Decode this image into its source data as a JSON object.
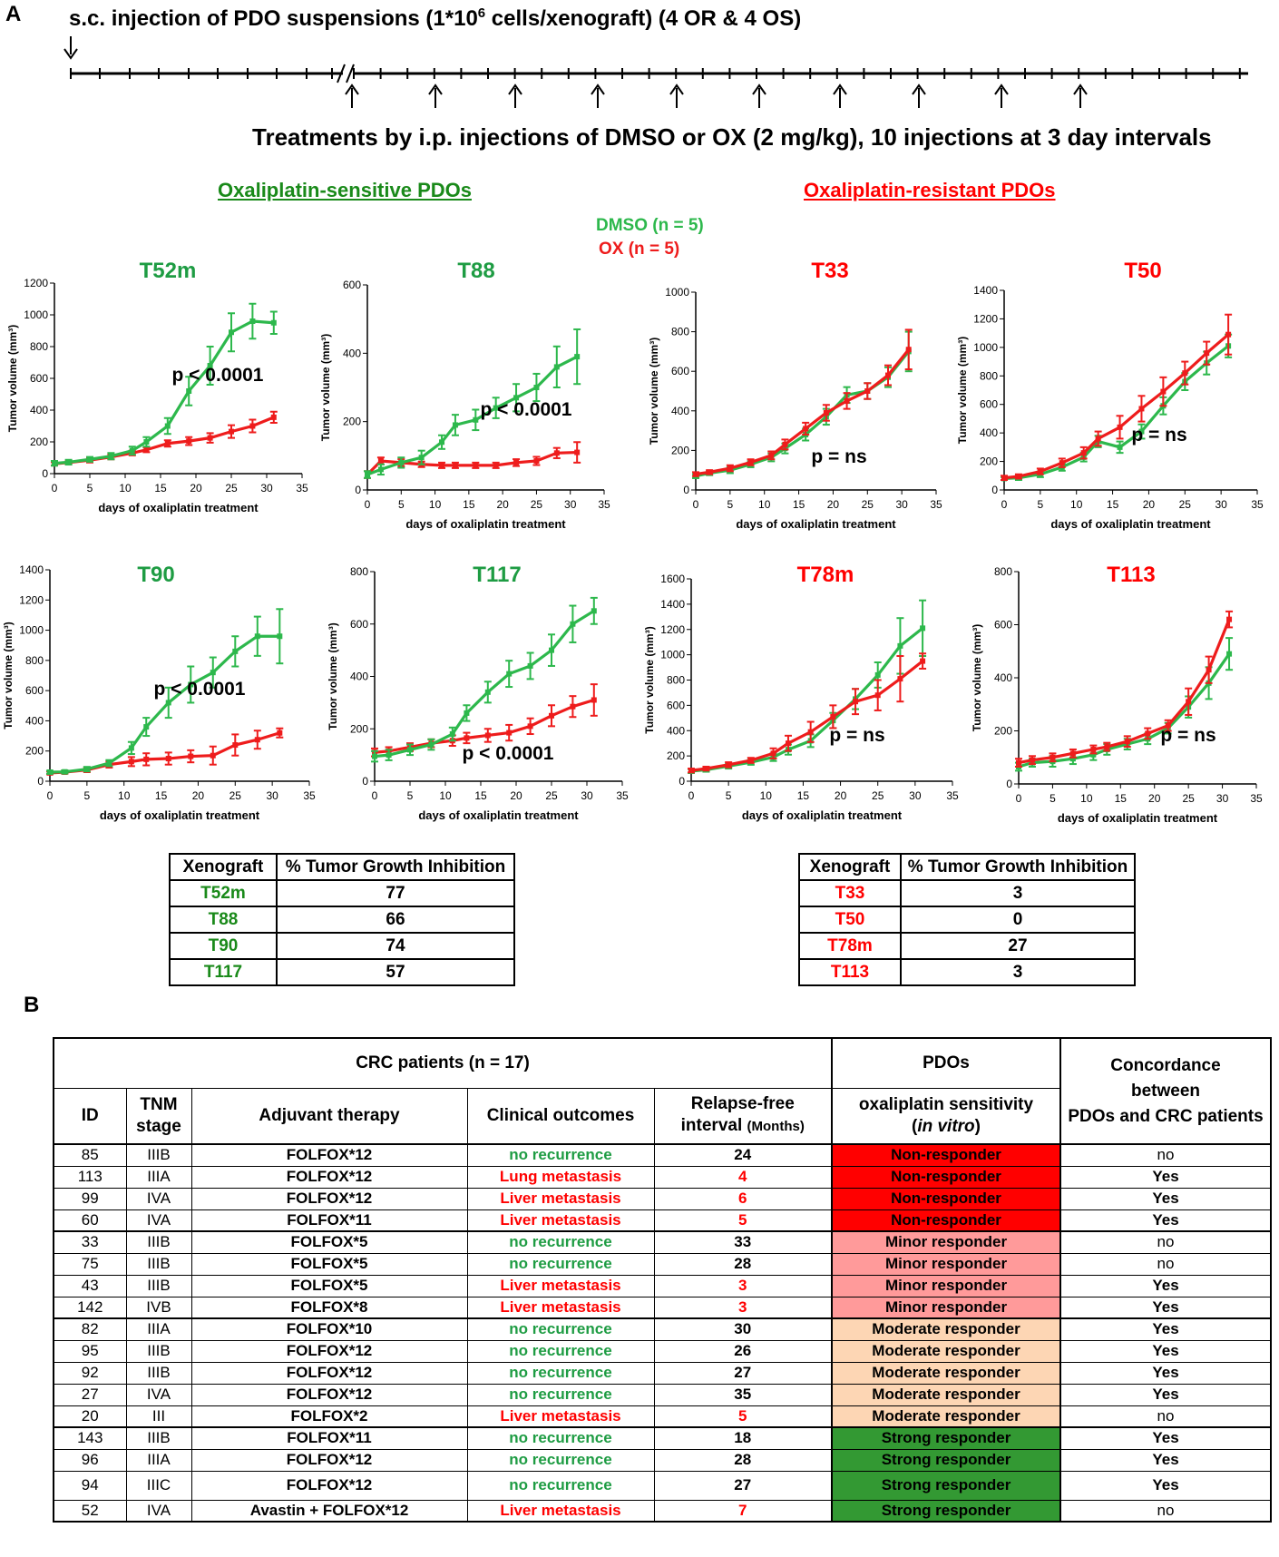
{
  "panelA": {
    "label": "A",
    "injection_text_pre": "s.c. injection of PDO suspensions (1*10",
    "injection_text_sup": "6",
    "injection_text_post": " cells/xenograft)  (4 OR & 4 OS)",
    "treatment_text": "Treatments by i.p. injections of DMSO or OX (2 mg/kg), 10 injections at 3 day intervals",
    "sensitive_title": "Oxaliplatin-sensitive PDOs",
    "resistant_title": "Oxaliplatin-resistant PDOs",
    "legend_dmso": "DMSO (n = 5)",
    "legend_ox": "OX (n = 5)",
    "colors": {
      "dmso": "#2db84c",
      "ox": "#ee1c1c",
      "sensitive_title": "#1a8a1a",
      "resistant_title": "#ff0000"
    }
  },
  "chart_data": [
    {
      "type": "line",
      "title": "T52m",
      "title_color": "green",
      "xlabel": "days of oxaliplatin treatment",
      "ylabel": "Tumor volume (mm³)",
      "xlim": [
        0,
        35
      ],
      "ylim": [
        0,
        1200
      ],
      "xticks": [
        0,
        5,
        10,
        15,
        20,
        25,
        30,
        35
      ],
      "yticks": [
        0,
        200,
        400,
        600,
        800,
        1000,
        1200
      ],
      "annotation": "p < 0.0001",
      "x": [
        0,
        2,
        5,
        8,
        11,
        13,
        16,
        19,
        22,
        25,
        28,
        31
      ],
      "series": [
        {
          "name": "DMSO",
          "values": [
            65,
            72,
            90,
            110,
            145,
            200,
            300,
            520,
            680,
            890,
            960,
            950
          ],
          "errors": [
            15,
            15,
            15,
            20,
            25,
            30,
            50,
            90,
            120,
            120,
            110,
            70
          ]
        },
        {
          "name": "OX",
          "values": [
            62,
            70,
            85,
            105,
            130,
            150,
            190,
            205,
            225,
            265,
            300,
            355
          ],
          "errors": [
            10,
            10,
            15,
            15,
            15,
            15,
            20,
            25,
            30,
            40,
            40,
            35
          ]
        }
      ]
    },
    {
      "type": "line",
      "title": "T88",
      "title_color": "green",
      "xlabel": "days of oxaliplatin treatment",
      "ylabel": "Tumor volume (mm³)",
      "xlim": [
        0,
        35
      ],
      "ylim": [
        0,
        600
      ],
      "xticks": [
        0,
        5,
        10,
        15,
        20,
        25,
        30,
        35
      ],
      "yticks": [
        0,
        200,
        400,
        600
      ],
      "annotation": "p < 0.0001",
      "x": [
        0,
        2,
        5,
        8,
        11,
        13,
        16,
        19,
        22,
        25,
        28,
        31
      ],
      "series": [
        {
          "name": "DMSO",
          "values": [
            45,
            60,
            80,
            95,
            140,
            190,
            205,
            240,
            270,
            300,
            360,
            390
          ],
          "errors": [
            10,
            15,
            15,
            20,
            20,
            30,
            30,
            30,
            40,
            40,
            60,
            80
          ]
        },
        {
          "name": "OX",
          "values": [
            45,
            85,
            80,
            75,
            72,
            72,
            72,
            72,
            80,
            85,
            108,
            110
          ],
          "errors": [
            10,
            10,
            10,
            8,
            8,
            8,
            8,
            8,
            10,
            12,
            15,
            30
          ]
        }
      ]
    },
    {
      "type": "line",
      "title": "T33",
      "title_color": "red",
      "xlabel": "days of oxaliplatin treatment",
      "ylabel": "Tumor volume (mm³)",
      "xlim": [
        0,
        35
      ],
      "ylim": [
        0,
        1000
      ],
      "xticks": [
        0,
        5,
        10,
        15,
        20,
        25,
        30,
        35
      ],
      "yticks": [
        0,
        200,
        400,
        600,
        800,
        1000
      ],
      "annotation": "p = ns",
      "x": [
        0,
        2,
        5,
        8,
        11,
        13,
        16,
        19,
        22,
        25,
        28,
        31
      ],
      "series": [
        {
          "name": "DMSO",
          "values": [
            70,
            85,
            100,
            130,
            165,
            210,
            280,
            370,
            480,
            500,
            570,
            700
          ],
          "errors": [
            10,
            10,
            15,
            15,
            20,
            25,
            30,
            40,
            40,
            40,
            50,
            100
          ]
        },
        {
          "name": "OX",
          "values": [
            80,
            90,
            110,
            140,
            175,
            230,
            310,
            390,
            450,
            500,
            580,
            710
          ],
          "errors": [
            10,
            10,
            15,
            15,
            20,
            25,
            30,
            40,
            40,
            40,
            50,
            100
          ]
        }
      ]
    },
    {
      "type": "line",
      "title": "T50",
      "title_color": "red",
      "xlabel": "days of oxaliplatin treatment",
      "ylabel": "Tumor volume (mm³)",
      "xlim": [
        0,
        35
      ],
      "ylim": [
        0,
        1400
      ],
      "xticks": [
        0,
        5,
        10,
        15,
        20,
        25,
        30,
        35
      ],
      "yticks": [
        0,
        200,
        400,
        600,
        800,
        1000,
        1200,
        1400
      ],
      "annotation": "p = ns",
      "x": [
        0,
        2,
        5,
        8,
        11,
        13,
        16,
        19,
        22,
        25,
        28,
        31
      ],
      "series": [
        {
          "name": "DMSO",
          "values": [
            80,
            85,
            110,
            160,
            230,
            340,
            300,
            410,
            590,
            760,
            890,
            1010
          ],
          "errors": [
            10,
            15,
            20,
            25,
            30,
            40,
            40,
            50,
            60,
            60,
            80,
            80
          ]
        },
        {
          "name": "OX",
          "values": [
            85,
            95,
            130,
            190,
            260,
            360,
            440,
            570,
            690,
            820,
            960,
            1090
          ],
          "errors": [
            15,
            15,
            20,
            30,
            40,
            50,
            80,
            90,
            100,
            80,
            80,
            140
          ]
        }
      ]
    },
    {
      "type": "line",
      "title": "T90",
      "title_color": "green",
      "xlabel": "days of oxaliplatin treatment",
      "ylabel": "Tumor volume (mm³)",
      "xlim": [
        0,
        35
      ],
      "ylim": [
        0,
        1400
      ],
      "xticks": [
        0,
        5,
        10,
        15,
        20,
        25,
        30,
        35
      ],
      "yticks": [
        0,
        200,
        400,
        600,
        800,
        1000,
        1200,
        1400
      ],
      "annotation": "p < 0.0001",
      "x": [
        0,
        2,
        5,
        8,
        11,
        13,
        16,
        19,
        22,
        25,
        28,
        31
      ],
      "series": [
        {
          "name": "DMSO",
          "values": [
            60,
            62,
            80,
            120,
            220,
            360,
            520,
            640,
            720,
            860,
            960,
            960
          ],
          "errors": [
            10,
            10,
            15,
            20,
            40,
            60,
            100,
            120,
            100,
            100,
            130,
            180
          ]
        },
        {
          "name": "OX",
          "values": [
            55,
            60,
            75,
            110,
            130,
            145,
            150,
            165,
            170,
            240,
            275,
            320
          ],
          "errors": [
            10,
            10,
            15,
            20,
            30,
            40,
            40,
            40,
            60,
            70,
            60,
            30
          ]
        }
      ]
    },
    {
      "type": "line",
      "title": "T117",
      "title_color": "green",
      "xlabel": "days of oxaliplatin treatment",
      "ylabel": "Tumor volume (mm³)",
      "xlim": [
        0,
        35
      ],
      "ylim": [
        0,
        800
      ],
      "xticks": [
        0,
        5,
        10,
        15,
        20,
        25,
        30,
        35
      ],
      "yticks": [
        0,
        200,
        400,
        600,
        800
      ],
      "annotation": "p < 0.0001",
      "x": [
        0,
        2,
        5,
        8,
        11,
        13,
        16,
        19,
        22,
        25,
        28,
        31
      ],
      "series": [
        {
          "name": "DMSO",
          "values": [
            95,
            100,
            120,
            140,
            180,
            260,
            340,
            410,
            440,
            500,
            600,
            650
          ],
          "errors": [
            20,
            20,
            20,
            20,
            25,
            30,
            40,
            50,
            50,
            60,
            70,
            50
          ]
        },
        {
          "name": "OX",
          "values": [
            110,
            115,
            130,
            145,
            155,
            165,
            175,
            185,
            210,
            250,
            285,
            310
          ],
          "errors": [
            15,
            15,
            15,
            15,
            20,
            20,
            25,
            30,
            30,
            40,
            40,
            60
          ]
        }
      ]
    },
    {
      "type": "line",
      "title": "T78m",
      "title_color": "red",
      "xlabel": "days of oxaliplatin treatment",
      "ylabel": "Tumor volume (mm³)",
      "xlim": [
        0,
        35
      ],
      "ylim": [
        0,
        1600
      ],
      "xticks": [
        0,
        5,
        10,
        15,
        20,
        25,
        30,
        35
      ],
      "yticks": [
        0,
        200,
        400,
        600,
        800,
        1000,
        1200,
        1400,
        1600
      ],
      "annotation": "p = ns",
      "x": [
        0,
        2,
        5,
        8,
        11,
        13,
        16,
        19,
        22,
        25,
        28,
        31
      ],
      "series": [
        {
          "name": "DMSO",
          "values": [
            80,
            90,
            120,
            150,
            190,
            250,
            320,
            480,
            650,
            840,
            1070,
            1210
          ],
          "errors": [
            15,
            15,
            20,
            20,
            30,
            40,
            50,
            60,
            80,
            100,
            220,
            220
          ]
        },
        {
          "name": "OX",
          "values": [
            85,
            100,
            130,
            165,
            220,
            300,
            390,
            510,
            630,
            680,
            810,
            950
          ],
          "errors": [
            15,
            15,
            20,
            20,
            40,
            60,
            80,
            90,
            100,
            120,
            180,
            60
          ]
        }
      ]
    },
    {
      "type": "line",
      "title": "T113",
      "title_color": "red",
      "xlabel": "days of oxaliplatin treatment",
      "ylabel": "Tumor volume (mm³)",
      "xlim": [
        0,
        35
      ],
      "ylim": [
        0,
        800
      ],
      "xticks": [
        0,
        5,
        10,
        15,
        20,
        25,
        30,
        35
      ],
      "yticks": [
        0,
        200,
        400,
        600,
        800
      ],
      "annotation": "p = ns",
      "x": [
        0,
        2,
        5,
        8,
        11,
        13,
        16,
        19,
        22,
        25,
        28,
        31
      ],
      "series": [
        {
          "name": "DMSO",
          "values": [
            65,
            80,
            85,
            95,
            110,
            130,
            150,
            170,
            210,
            290,
            380,
            490
          ],
          "errors": [
            15,
            15,
            20,
            20,
            20,
            20,
            20,
            20,
            20,
            40,
            60,
            60
          ]
        },
        {
          "name": "OX",
          "values": [
            80,
            90,
            100,
            115,
            130,
            140,
            160,
            190,
            220,
            310,
            430,
            620
          ],
          "errors": [
            15,
            15,
            15,
            15,
            15,
            15,
            20,
            20,
            20,
            50,
            50,
            30
          ]
        }
      ]
    }
  ],
  "tgi_sensitive": {
    "header": [
      "Xenograft",
      "% Tumor Growth Inhibition"
    ],
    "rows": [
      [
        "T52m",
        "77"
      ],
      [
        "T88",
        "66"
      ],
      [
        "T90",
        "74"
      ],
      [
        "T117",
        "57"
      ]
    ]
  },
  "tgi_resistant": {
    "header": [
      "Xenograft",
      "% Tumor Growth Inhibition"
    ],
    "rows": [
      [
        "T33",
        "3"
      ],
      [
        "T50",
        "0"
      ],
      [
        "T78m",
        "27"
      ],
      [
        "T113",
        "3"
      ]
    ]
  },
  "panelB": {
    "label": "B",
    "group_patients": "CRC patients (n = 17)",
    "group_pdos": "PDOs",
    "group_concordance_1": "Concordance",
    "group_concordance_2": "between",
    "group_concordance_3": "PDOs and CRC patients",
    "col_id": "ID",
    "col_tnm_1": "TNM",
    "col_tnm_2": "stage",
    "col_therapy": "Adjuvant therapy",
    "col_outcome": "Clinical outcomes",
    "col_rfi_1": "Relapse-",
    "col_rfi_2": "free",
    "col_rfi_3": "interval",
    "col_rfi_unit": "(Months)",
    "col_sens_1": "oxaliplatin sensitivity",
    "col_sens_2": "in vitro",
    "response_colors": {
      "Non-responder": "#ff0000",
      "Minor responder": "#ff9a9a",
      "Moderate responder": "#fdd6b4",
      "Strong responder": "#339933"
    },
    "rows": [
      {
        "id": "85",
        "stage": "IIIB",
        "therapy": "FOLFOX*12",
        "outcome": "no recurrence",
        "rfi": "24",
        "resp": "Non-responder",
        "conc": "no"
      },
      {
        "id": "113",
        "stage": "IIIA",
        "therapy": "FOLFOX*12",
        "outcome": "Lung metastasis",
        "rfi": "4",
        "resp": "Non-responder",
        "conc": "Yes"
      },
      {
        "id": "99",
        "stage": "IVA",
        "therapy": "FOLFOX*12",
        "outcome": "Liver metastasis",
        "rfi": "6",
        "resp": "Non-responder",
        "conc": "Yes"
      },
      {
        "id": "60",
        "stage": "IVA",
        "therapy": "FOLFOX*11",
        "outcome": "Liver metastasis",
        "rfi": "5",
        "resp": "Non-responder",
        "conc": "Yes"
      },
      {
        "id": "33",
        "stage": "IIIB",
        "therapy": "FOLFOX*5",
        "outcome": "no recurrence",
        "rfi": "33",
        "resp": "Minor responder",
        "conc": "no"
      },
      {
        "id": "75",
        "stage": "IIIB",
        "therapy": "FOLFOX*5",
        "outcome": "no recurrence",
        "rfi": "28",
        "resp": "Minor responder",
        "conc": "no"
      },
      {
        "id": "43",
        "stage": "IIIB",
        "therapy": "FOLFOX*5",
        "outcome": "Liver metastasis",
        "rfi": "3",
        "resp": "Minor responder",
        "conc": "Yes"
      },
      {
        "id": "142",
        "stage": "IVB",
        "therapy": "FOLFOX*8",
        "outcome": "Liver metastasis",
        "rfi": "3",
        "resp": "Minor responder",
        "conc": "Yes"
      },
      {
        "id": "82",
        "stage": "IIIA",
        "therapy": "FOLFOX*10",
        "outcome": "no recurrence",
        "rfi": "30",
        "resp": "Moderate responder",
        "conc": "Yes"
      },
      {
        "id": "95",
        "stage": "IIIB",
        "therapy": "FOLFOX*12",
        "outcome": "no recurrence",
        "rfi": "26",
        "resp": "Moderate responder",
        "conc": "Yes"
      },
      {
        "id": "92",
        "stage": "IIIB",
        "therapy": "FOLFOX*12",
        "outcome": "no recurrence",
        "rfi": "27",
        "resp": "Moderate responder",
        "conc": "Yes"
      },
      {
        "id": "27",
        "stage": "IVA",
        "therapy": "FOLFOX*12",
        "outcome": "no recurrence",
        "rfi": "35",
        "resp": "Moderate responder",
        "conc": "Yes"
      },
      {
        "id": "20",
        "stage": "III",
        "therapy": "FOLFOX*2",
        "outcome": "Liver metastasis",
        "rfi": "5",
        "resp": "Moderate responder",
        "conc": "no"
      },
      {
        "id": "143",
        "stage": "IIIB",
        "therapy": "FOLFOX*11",
        "outcome": "no recurrence",
        "rfi": "18",
        "resp": "Strong responder",
        "conc": "Yes"
      },
      {
        "id": "96",
        "stage": "IIIA",
        "therapy": "FOLFOX*12",
        "outcome": "no recurrence",
        "rfi": "28",
        "resp": "Strong responder",
        "conc": "Yes"
      },
      {
        "id": "94",
        "stage": "IIIC",
        "therapy": "FOLFOX*12",
        "outcome": "no recurrence",
        "rfi": "27",
        "resp": "Strong responder",
        "conc": "Yes"
      },
      {
        "id": "52",
        "stage": "IVA",
        "therapy": "Avastin + FOLFOX*12",
        "outcome": "Liver metastasis",
        "rfi": "7",
        "resp": "Strong responder",
        "conc": "no"
      }
    ]
  }
}
